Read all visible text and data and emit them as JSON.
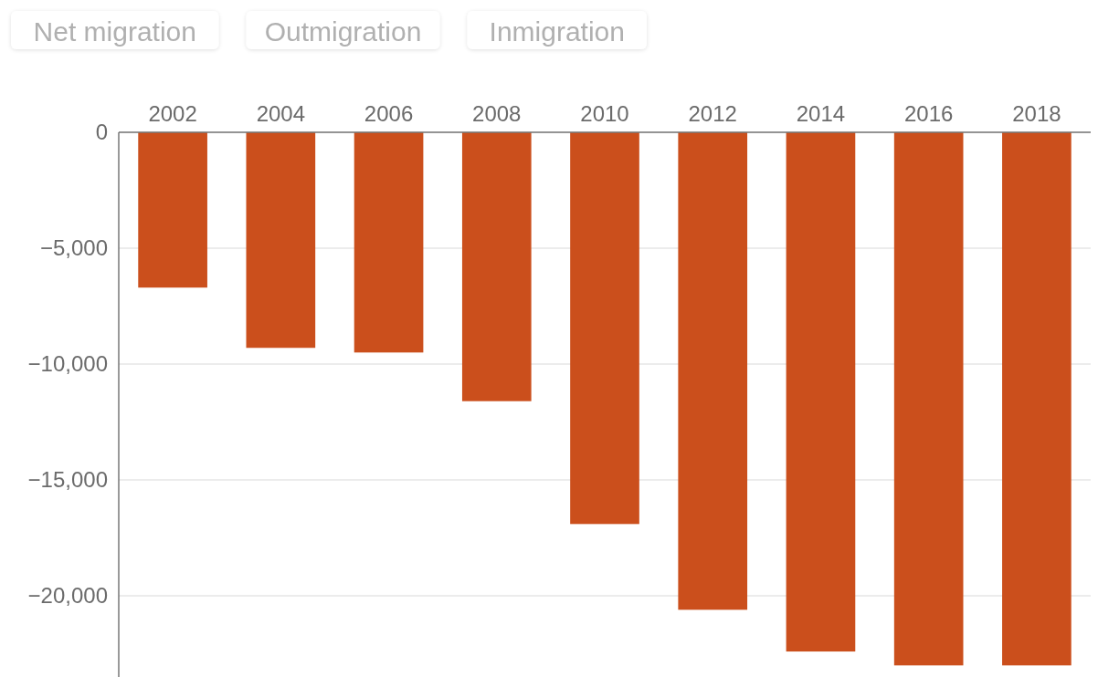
{
  "chart_data": {
    "type": "bar",
    "categories": [
      "2002",
      "2004",
      "2006",
      "2008",
      "2010",
      "2012",
      "2014",
      "2016",
      "2018"
    ],
    "values": [
      -6700,
      -9300,
      -9500,
      -11600,
      -16900,
      -20600,
      -22400,
      -23000,
      -23000
    ],
    "color": "#cb4f1c",
    "ylim": [
      -23500,
      0
    ],
    "yticks": [
      {
        "value": -20000,
        "label": "−20,000"
      },
      {
        "value": -15000,
        "label": "−15,000"
      },
      {
        "value": -10000,
        "label": "−10,000"
      },
      {
        "value": -5000,
        "label": "−5,000"
      },
      0
    ],
    "grid": "y",
    "annotations": [
      "Net migration",
      "Outmigration",
      "Inmigration"
    ]
  }
}
